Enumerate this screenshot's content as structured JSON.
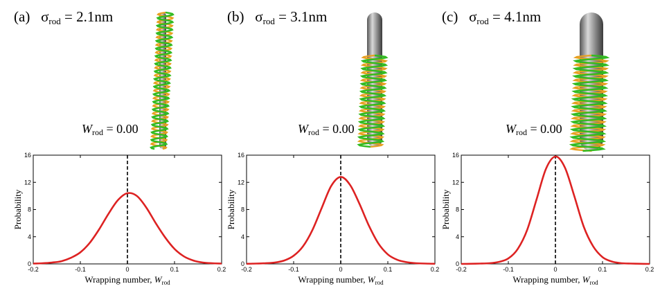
{
  "panels": [
    {
      "letter": "(a)",
      "sigma_symbol": "σ",
      "sigma_sub": "rod",
      "sigma_eq": " = 2.1nm",
      "w_symbol": "W",
      "w_sub": "rod",
      "w_eq": " = 0.00",
      "rod_radius_nm": 2.1
    },
    {
      "letter": "(b)",
      "sigma_symbol": "σ",
      "sigma_sub": "rod",
      "sigma_eq": " = 3.1nm",
      "w_symbol": "W",
      "w_sub": "rod",
      "w_eq": " = 0.00",
      "rod_radius_nm": 3.1
    },
    {
      "letter": "(c)",
      "sigma_symbol": "σ",
      "sigma_sub": "rod",
      "sigma_eq": " = 4.1nm",
      "w_symbol": "W",
      "w_sub": "rod",
      "w_eq": " = 0.00",
      "rod_radius_nm": 4.1
    }
  ],
  "colors": {
    "curve": "#dd2222",
    "dashed": "#000000",
    "helix_green": "#33bb22",
    "helix_orange": "#e8a020",
    "rod_dark": "#555555",
    "rod_light": "#d8d8d8"
  },
  "chart_data": [
    {
      "type": "line",
      "xlabel": "Wrapping number, ",
      "xlabel_italic": "W",
      "xlabel_sub": "rod",
      "ylabel": "Probability",
      "xlim": [
        -0.2,
        0.2
      ],
      "ylim": [
        0,
        16
      ],
      "xticks": [
        -0.2,
        -0.1,
        0,
        0.1,
        0.2
      ],
      "xtick_labels": [
        "-0.2",
        "-0.1",
        "0",
        "0.1",
        "0.2"
      ],
      "yticks": [
        0,
        4,
        8,
        12,
        16
      ],
      "ytick_labels": [
        "0",
        "4",
        "8",
        "12",
        "16"
      ],
      "vline_x": 0,
      "x": [
        -0.2,
        -0.18,
        -0.16,
        -0.14,
        -0.12,
        -0.1,
        -0.08,
        -0.06,
        -0.04,
        -0.02,
        0,
        0.02,
        0.04,
        0.06,
        0.08,
        0.1,
        0.12,
        0.14,
        0.16,
        0.18,
        0.2
      ],
      "y": [
        0.05,
        0.1,
        0.2,
        0.4,
        0.9,
        1.7,
        3.1,
        5.1,
        7.4,
        9.4,
        10.4,
        10.0,
        8.3,
        6.0,
        3.9,
        2.2,
        1.1,
        0.5,
        0.2,
        0.1,
        0.05
      ]
    },
    {
      "type": "line",
      "xlabel": "Wrapping number, ",
      "xlabel_italic": "W",
      "xlabel_sub": "rod",
      "ylabel": "Probability",
      "xlim": [
        -0.2,
        0.2
      ],
      "ylim": [
        0,
        16
      ],
      "xticks": [
        -0.2,
        -0.1,
        0,
        0.1,
        0.2
      ],
      "xtick_labels": [
        "-0.2",
        "-0.1",
        "0",
        "0.1",
        "0.2"
      ],
      "yticks": [
        0,
        4,
        8,
        12,
        16
      ],
      "ytick_labels": [
        "0",
        "4",
        "8",
        "12",
        "16"
      ],
      "vline_x": 0,
      "x": [
        -0.2,
        -0.18,
        -0.16,
        -0.14,
        -0.12,
        -0.1,
        -0.08,
        -0.06,
        -0.04,
        -0.02,
        0,
        0.02,
        0.04,
        0.06,
        0.08,
        0.1,
        0.12,
        0.14,
        0.16,
        0.18,
        0.2
      ],
      "y": [
        0.02,
        0.05,
        0.1,
        0.2,
        0.5,
        1.2,
        2.6,
        5.0,
        8.3,
        11.5,
        12.8,
        11.6,
        8.8,
        5.6,
        3.0,
        1.4,
        0.6,
        0.25,
        0.1,
        0.05,
        0.02
      ]
    },
    {
      "type": "line",
      "xlabel": "Wrapping number, ",
      "xlabel_italic": "W",
      "xlabel_sub": "rod",
      "ylabel": "Probability",
      "xlim": [
        -0.2,
        0.2
      ],
      "ylim": [
        0,
        16
      ],
      "xticks": [
        -0.2,
        -0.1,
        0,
        0.1,
        0.2
      ],
      "xtick_labels": [
        "-0.2",
        "-0.1",
        "0",
        "0.1",
        "0.2"
      ],
      "yticks": [
        0,
        4,
        8,
        12,
        16
      ],
      "ytick_labels": [
        "0",
        "4",
        "8",
        "12",
        "16"
      ],
      "vline_x": 0,
      "x": [
        -0.2,
        -0.18,
        -0.16,
        -0.14,
        -0.12,
        -0.1,
        -0.08,
        -0.06,
        -0.04,
        -0.02,
        0,
        0.02,
        0.04,
        0.06,
        0.08,
        0.1,
        0.12,
        0.14,
        0.16,
        0.18,
        0.2
      ],
      "y": [
        0.0,
        0.02,
        0.05,
        0.1,
        0.3,
        0.8,
        2.2,
        5.0,
        9.5,
        14.0,
        15.8,
        14.2,
        10.0,
        5.5,
        2.6,
        1.0,
        0.35,
        0.1,
        0.05,
        0.02,
        0.0
      ]
    }
  ]
}
